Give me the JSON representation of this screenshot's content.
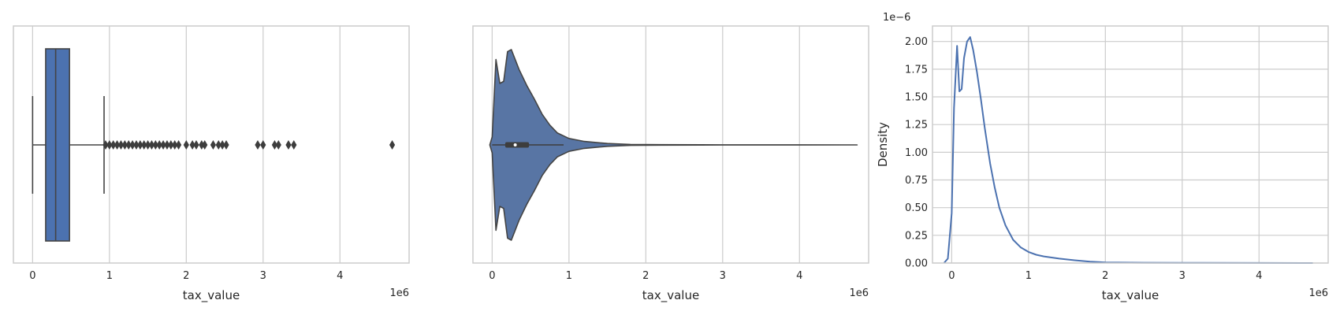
{
  "chart_data": [
    {
      "type": "box",
      "xlabel": "tax_value",
      "x_offset_label": "1e6",
      "xlim": [
        -0.25,
        4.9
      ],
      "xticks": [
        0,
        1,
        2,
        3,
        4
      ],
      "xtick_labels": [
        "0",
        "1",
        "2",
        "3",
        "4"
      ],
      "grid": "vertical",
      "box": {
        "whisker_low": 0.0,
        "q1": 0.17,
        "median": 0.3,
        "q3": 0.48,
        "whisker_high": 0.93
      },
      "outliers": [
        0.95,
        1.0,
        1.05,
        1.1,
        1.15,
        1.2,
        1.25,
        1.3,
        1.35,
        1.4,
        1.45,
        1.5,
        1.55,
        1.6,
        1.65,
        1.7,
        1.75,
        1.8,
        1.85,
        1.9,
        2.0,
        2.08,
        2.13,
        2.2,
        2.24,
        2.35,
        2.42,
        2.47,
        2.52,
        2.93,
        3.0,
        3.15,
        3.2,
        3.33,
        3.4,
        4.68
      ],
      "color": "#4c72b0",
      "edge_color": "#444444"
    },
    {
      "type": "violin",
      "xlabel": "tax_value",
      "x_offset_label": "1e6",
      "xlim": [
        -0.25,
        4.9
      ],
      "xticks": [
        0,
        1,
        2,
        3,
        4
      ],
      "xtick_labels": [
        "0",
        "1",
        "2",
        "3",
        "4"
      ],
      "grid": "vertical",
      "profile": [
        [
          -0.03,
          0.0
        ],
        [
          0.0,
          0.08
        ],
        [
          0.05,
          0.86
        ],
        [
          0.1,
          0.62
        ],
        [
          0.15,
          0.64
        ],
        [
          0.2,
          0.94
        ],
        [
          0.25,
          0.96
        ],
        [
          0.3,
          0.86
        ],
        [
          0.35,
          0.76
        ],
        [
          0.45,
          0.6
        ],
        [
          0.55,
          0.46
        ],
        [
          0.65,
          0.31
        ],
        [
          0.75,
          0.2
        ],
        [
          0.85,
          0.12
        ],
        [
          1.0,
          0.065
        ],
        [
          1.2,
          0.035
        ],
        [
          1.5,
          0.014
        ],
        [
          1.8,
          0.005
        ],
        [
          2.2,
          0.002
        ],
        [
          3.0,
          0.001
        ],
        [
          4.75,
          0.0
        ]
      ],
      "inner_box": {
        "q1": 0.17,
        "median": 0.3,
        "q3": 0.48,
        "whisker_low": 0.0,
        "whisker_high": 0.93
      },
      "color": "#5875a4",
      "edge_color": "#444444"
    },
    {
      "type": "line",
      "xlabel": "tax_value",
      "ylabel": "Density",
      "x_offset_label": "1e6",
      "y_offset_label": "1e−6",
      "xlim": [
        -0.25,
        4.9
      ],
      "ylim": [
        0,
        2.14
      ],
      "xticks": [
        0,
        1,
        2,
        3,
        4
      ],
      "xtick_labels": [
        "0",
        "1",
        "2",
        "3",
        "4"
      ],
      "yticks": [
        0,
        0.25,
        0.5,
        0.75,
        1.0,
        1.25,
        1.5,
        1.75,
        2.0
      ],
      "ytick_labels": [
        "0.00",
        "0.25",
        "0.50",
        "0.75",
        "1.00",
        "1.25",
        "1.50",
        "1.75",
        "2.00"
      ],
      "grid": "both",
      "series": [
        {
          "color": "#4c72b0",
          "x": [
            -0.1,
            -0.05,
            0.0,
            0.03,
            0.07,
            0.1,
            0.13,
            0.16,
            0.2,
            0.24,
            0.28,
            0.33,
            0.38,
            0.43,
            0.5,
            0.56,
            0.62,
            0.7,
            0.8,
            0.9,
            1.0,
            1.1,
            1.2,
            1.4,
            1.6,
            1.8,
            2.0,
            2.5,
            3.0,
            4.0,
            4.7
          ],
          "y": [
            0.0,
            0.04,
            0.45,
            1.4,
            1.96,
            1.55,
            1.57,
            1.85,
            2.0,
            2.04,
            1.92,
            1.72,
            1.48,
            1.22,
            0.9,
            0.68,
            0.5,
            0.34,
            0.21,
            0.14,
            0.1,
            0.075,
            0.06,
            0.04,
            0.025,
            0.012,
            0.006,
            0.003,
            0.002,
            0.001,
            0.0
          ]
        }
      ]
    }
  ]
}
